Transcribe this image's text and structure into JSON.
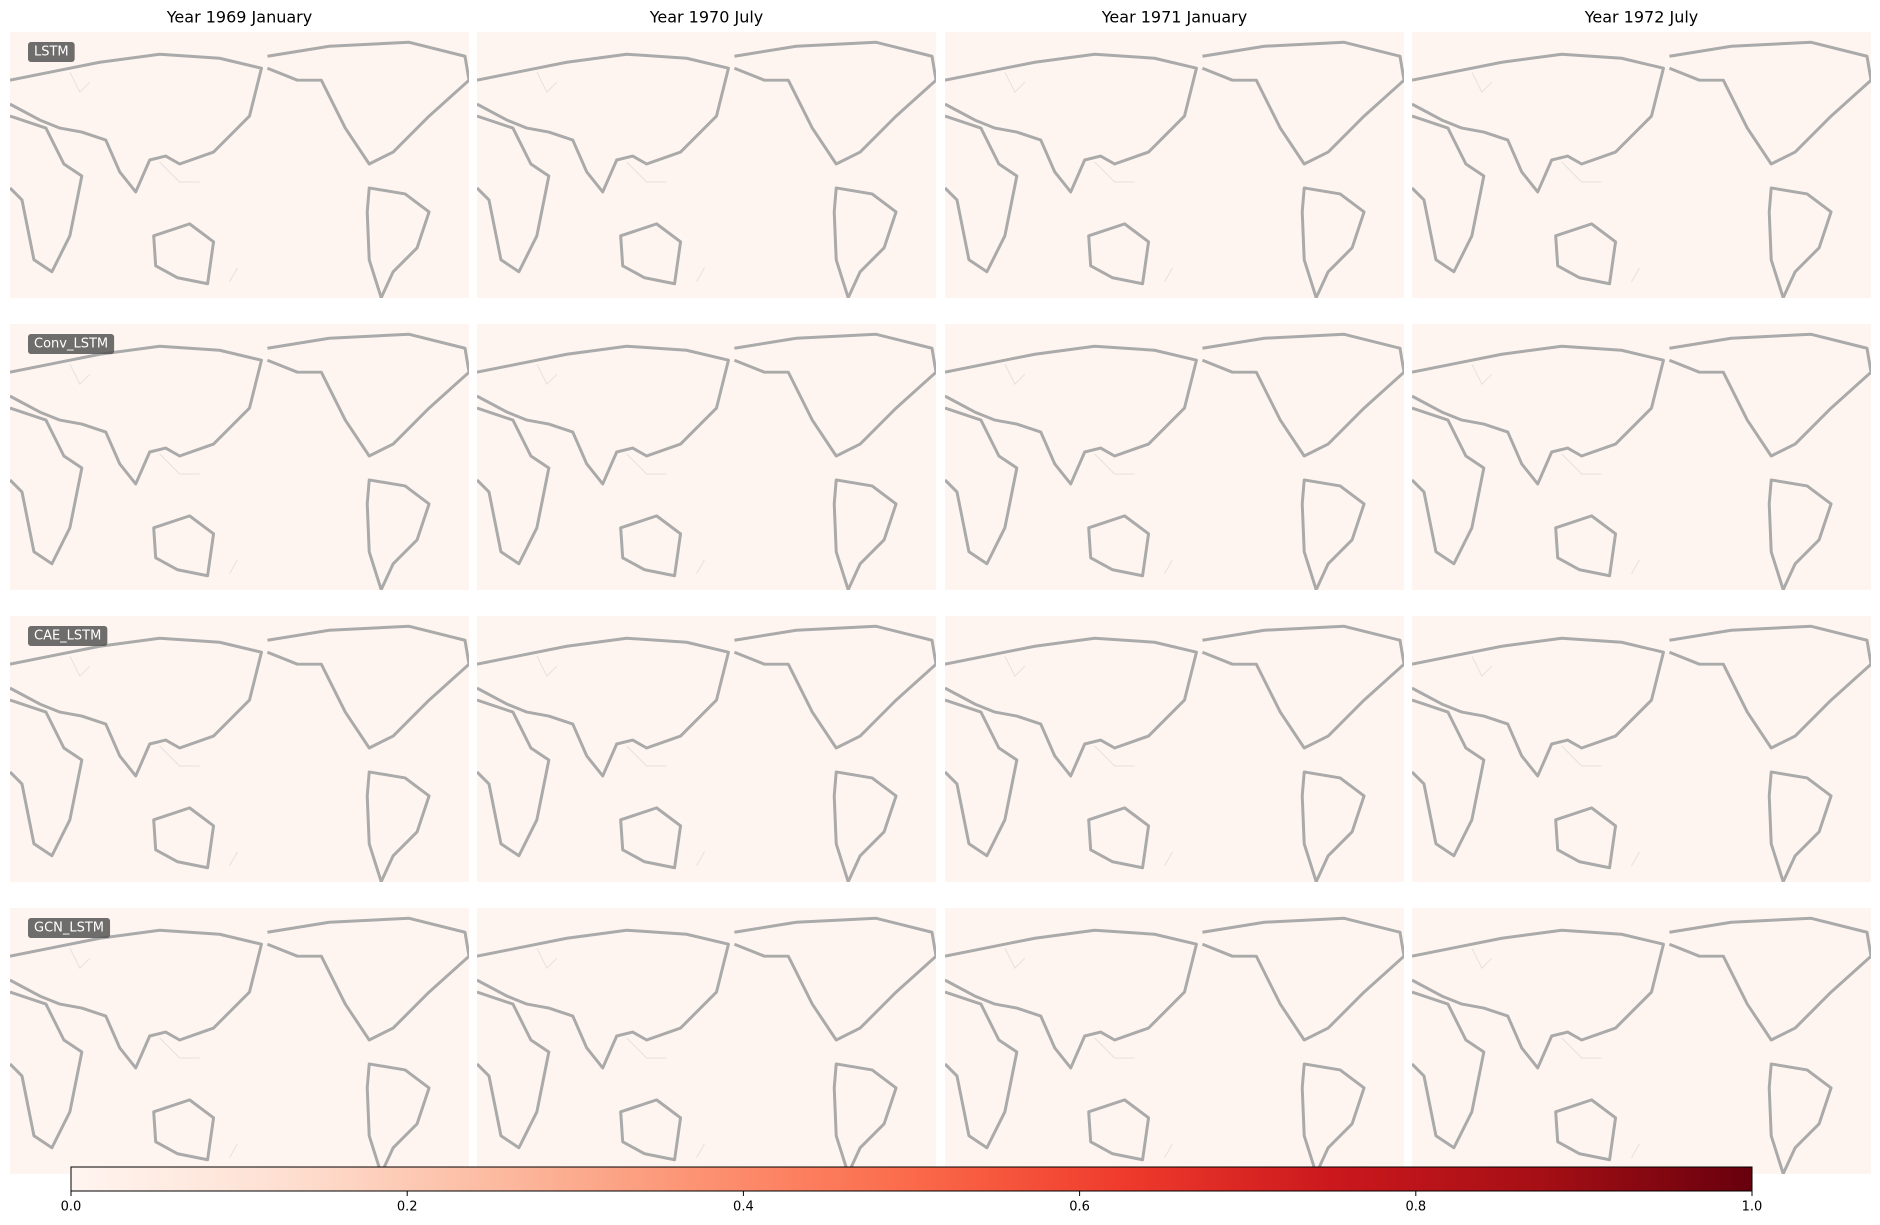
{
  "columns": [
    "Year 1969 January",
    "Year 1970 July",
    "Year 1971 January",
    "Year 1972 July"
  ],
  "rows": [
    "LSTM",
    "Conv_LSTM",
    "CAE_LSTM",
    "GCN_LSTM"
  ],
  "colorbar": {
    "lim": [
      0,
      1
    ],
    "ticks": [
      {
        "value": 0,
        "label": "0.0"
      },
      0.2,
      0.4,
      0.6,
      0.8,
      {
        "value": 1,
        "label": "1.0"
      }
    ],
    "colors": [
      "#fff5f0",
      "#fee0d2",
      "#fcbba1",
      "#fc9272",
      "#fb6a4a",
      "#ef3b2c",
      "#cb181d",
      "#a50f15",
      "#67000d"
    ]
  }
}
